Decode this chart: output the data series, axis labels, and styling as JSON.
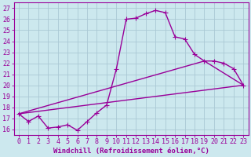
{
  "xlabel": "Windchill (Refroidissement éolien,°C)",
  "bg_color": "#cce8ee",
  "line_color": "#990099",
  "grid_color": "#aac8d4",
  "xlim": [
    -0.5,
    23.5
  ],
  "ylim": [
    15.5,
    27.5
  ],
  "xticks": [
    0,
    1,
    2,
    3,
    4,
    5,
    6,
    7,
    8,
    9,
    10,
    11,
    12,
    13,
    14,
    15,
    16,
    17,
    18,
    19,
    20,
    21,
    22,
    23
  ],
  "yticks": [
    16,
    17,
    18,
    19,
    20,
    21,
    22,
    23,
    24,
    25,
    26,
    27
  ],
  "line1_x": [
    0,
    1,
    2,
    3,
    4,
    5,
    6,
    7,
    8,
    9,
    10,
    11,
    12,
    13,
    14,
    15,
    16,
    17,
    18,
    19,
    20,
    21,
    22,
    23
  ],
  "line1_y": [
    17.4,
    16.7,
    17.2,
    16.1,
    16.2,
    16.4,
    15.9,
    16.7,
    17.5,
    18.2,
    21.5,
    26.0,
    26.1,
    26.5,
    26.8,
    26.6,
    24.4,
    24.2,
    22.8,
    22.2,
    22.2,
    22.0,
    21.5,
    20.0
  ],
  "line2_x": [
    0,
    23
  ],
  "line2_y": [
    17.4,
    20.0
  ],
  "line3_x": [
    0,
    19,
    23
  ],
  "line3_y": [
    17.4,
    22.2,
    20.0
  ],
  "marker": "+",
  "marker_size": 4,
  "line_width": 1.0,
  "xlabel_fontsize": 6.5,
  "tick_fontsize": 6.0
}
